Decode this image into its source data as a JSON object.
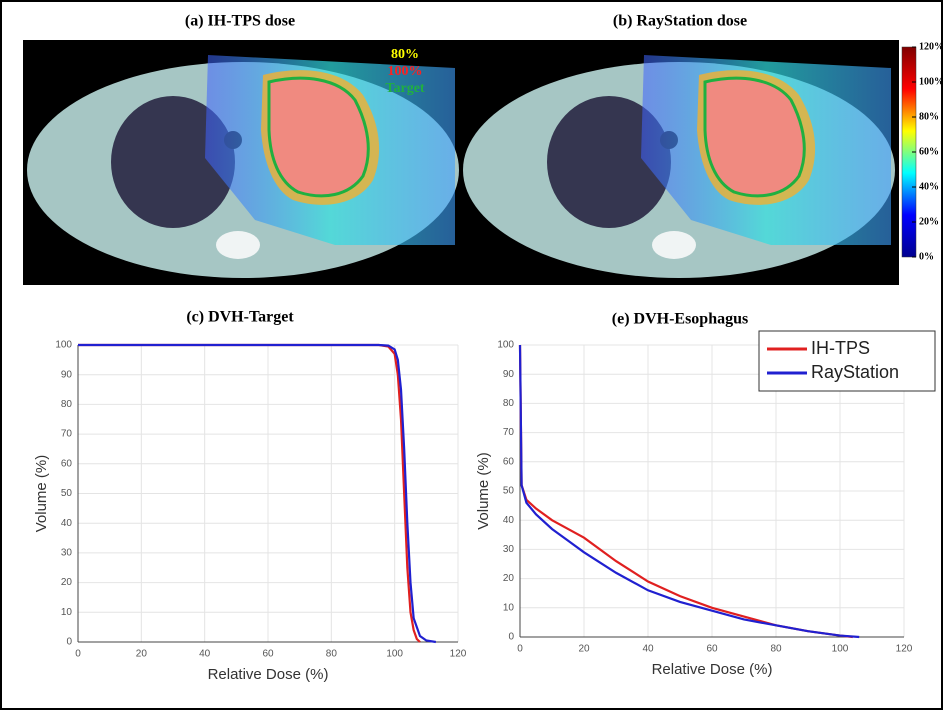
{
  "panels": [
    {
      "title": "(a) IH-TPS dose"
    },
    {
      "title": "(b) RayStation dose"
    }
  ],
  "overlay_labels": [
    {
      "text": "80%",
      "color": "#ffff00"
    },
    {
      "text": "100%",
      "color": "#ff2020"
    },
    {
      "text": "Target",
      "color": "#20b040"
    }
  ],
  "colorbar": {
    "lim": [
      0,
      120
    ],
    "colors": [
      "#00008f",
      "#0000ff",
      "#00ffff",
      "#ffff00",
      "#ff0000",
      "#800000"
    ],
    "ticks": [
      {
        "value": 120,
        "label": "120%"
      },
      {
        "value": 100,
        "label": "100%"
      },
      {
        "value": 80,
        "label": "80%"
      },
      {
        "value": 60,
        "label": "60%"
      },
      {
        "value": 40,
        "label": "40%"
      },
      {
        "value": 20,
        "label": "20%"
      },
      {
        "value": 0,
        "label": "0%"
      }
    ]
  },
  "chart_data": [
    {
      "type": "line",
      "title": "(c) DVH-Target",
      "x_label": "Relative Dose (%)",
      "y_label": "Volume (%)",
      "xlim": [
        0,
        120
      ],
      "ylim": [
        0,
        100
      ],
      "xticks": [
        0,
        20,
        40,
        60,
        80,
        100,
        120
      ],
      "yticks": [
        0,
        10,
        20,
        30,
        40,
        50,
        60,
        70,
        80,
        90,
        100
      ],
      "grid": true,
      "series": [
        {
          "color": "#e02020",
          "x": [
            0,
            95,
            98,
            100,
            101,
            102,
            103,
            104,
            105,
            106,
            107,
            108
          ],
          "values": [
            100,
            100,
            99.5,
            97,
            90,
            75,
            50,
            25,
            10,
            4,
            1,
            0
          ]
        },
        {
          "color": "#2020d0",
          "x": [
            0,
            95,
            98,
            100,
            101,
            102,
            103,
            104,
            105,
            106,
            108,
            110,
            113
          ],
          "values": [
            100,
            100,
            99.8,
            98.5,
            95,
            85,
            65,
            40,
            20,
            8,
            2,
            0.5,
            0
          ]
        }
      ]
    },
    {
      "type": "line",
      "title": "(e) DVH-Esophagus",
      "x_label": "Relative Dose (%)",
      "y_label": "Volume (%)",
      "xlim": [
        0,
        120
      ],
      "ylim": [
        0,
        100
      ],
      "xticks": [
        0,
        20,
        40,
        60,
        80,
        100,
        120
      ],
      "yticks": [
        0,
        10,
        20,
        30,
        40,
        50,
        60,
        70,
        80,
        90,
        100
      ],
      "grid": true,
      "legend": "upper right",
      "series": [
        {
          "name": "IH-TPS",
          "color": "#e02020",
          "x": [
            0,
            0.5,
            2,
            5,
            10,
            15,
            20,
            30,
            40,
            50,
            60,
            70,
            80,
            90,
            100,
            104
          ],
          "values": [
            100,
            52,
            47,
            44,
            40,
            37,
            34,
            26,
            19,
            14,
            10,
            7,
            4,
            2,
            0.5,
            0
          ]
        },
        {
          "name": "RayStation",
          "color": "#2020d0",
          "x": [
            0,
            0.5,
            2,
            5,
            10,
            15,
            20,
            30,
            40,
            50,
            60,
            70,
            80,
            90,
            100,
            106
          ],
          "values": [
            100,
            52,
            46,
            42,
            37,
            33,
            29,
            22,
            16,
            12,
            9,
            6,
            4,
            2,
            0.5,
            0
          ]
        }
      ]
    }
  ]
}
